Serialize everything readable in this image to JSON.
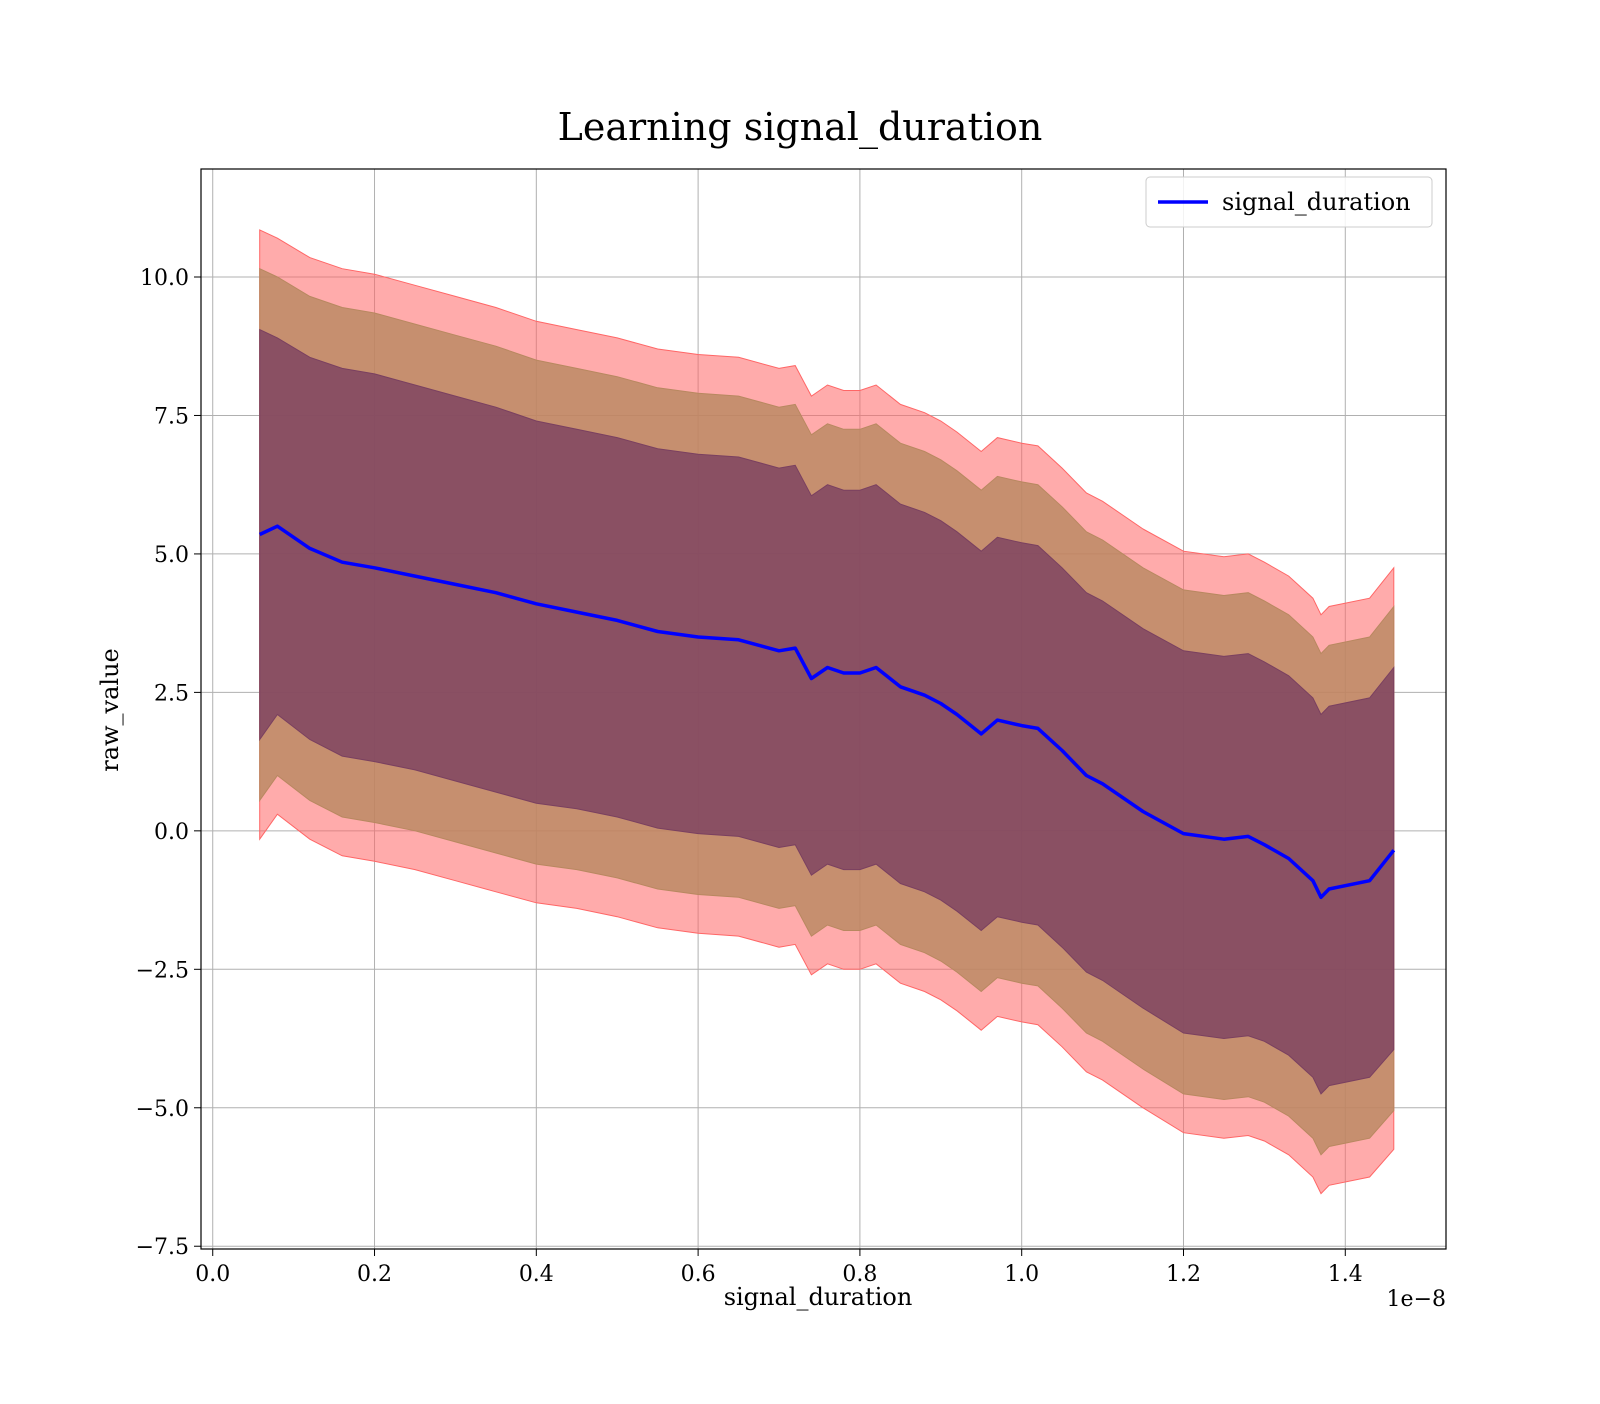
{
  "chart_data": {
    "type": "line",
    "title": "Learning signal_duration",
    "xlabel": "signal_duration",
    "ylabel": "raw_value",
    "x_offset_label": "1e−8",
    "xlim": [
      -0.0145,
      1.5245
    ],
    "ylim": [
      -7.55,
      11.95
    ],
    "x_ticks": [
      0.0,
      0.2,
      0.4,
      0.6,
      0.8,
      1.0,
      1.2,
      1.4
    ],
    "x_tick_labels": [
      "0.0",
      "0.2",
      "0.4",
      "0.6",
      "0.8",
      "1.0",
      "1.2",
      "1.4"
    ],
    "y_ticks": [
      -7.5,
      -5.0,
      -2.5,
      0.0,
      2.5,
      5.0,
      7.5,
      10.0
    ],
    "y_tick_labels": [
      "−7.5",
      "−5.0",
      "−2.5",
      "0.0",
      "2.5",
      "5.0",
      "7.5",
      "10.0"
    ],
    "grid": true,
    "legend_position": "top-right",
    "x": [
      0.058,
      0.08,
      0.12,
      0.16,
      0.2,
      0.25,
      0.3,
      0.35,
      0.4,
      0.45,
      0.5,
      0.55,
      0.6,
      0.65,
      0.7,
      0.72,
      0.74,
      0.76,
      0.78,
      0.8,
      0.82,
      0.85,
      0.88,
      0.9,
      0.92,
      0.95,
      0.97,
      1.0,
      1.02,
      1.05,
      1.08,
      1.1,
      1.15,
      1.2,
      1.25,
      1.28,
      1.3,
      1.33,
      1.36,
      1.37,
      1.38,
      1.43,
      1.46
    ],
    "series": [
      {
        "name": "signal_duration",
        "color": "#0000ff",
        "values": [
          5.35,
          5.5,
          5.1,
          4.85,
          4.75,
          4.6,
          4.45,
          4.3,
          4.1,
          3.95,
          3.8,
          3.6,
          3.5,
          3.45,
          3.25,
          3.3,
          2.75,
          2.95,
          2.85,
          2.85,
          2.95,
          2.6,
          2.45,
          2.3,
          2.1,
          1.75,
          2.0,
          1.9,
          1.85,
          1.45,
          1.0,
          0.85,
          0.35,
          -0.05,
          -0.15,
          -0.1,
          -0.25,
          -0.5,
          -0.9,
          -1.2,
          -1.05,
          -0.9,
          -0.35
        ]
      }
    ],
    "bands": [
      {
        "color": "#ff6666",
        "upper": [
          10.85,
          10.7,
          10.35,
          10.15,
          10.05,
          9.85,
          9.65,
          9.45,
          9.2,
          9.05,
          8.9,
          8.7,
          8.6,
          8.55,
          8.35,
          8.4,
          7.85,
          8.05,
          7.95,
          7.95,
          8.05,
          7.7,
          7.55,
          7.4,
          7.2,
          6.85,
          7.1,
          7.0,
          6.95,
          6.55,
          6.1,
          5.95,
          5.45,
          5.05,
          4.95,
          5.0,
          4.85,
          4.6,
          4.2,
          3.9,
          4.05,
          4.2,
          4.75
        ],
        "lower": [
          -0.15,
          0.3,
          -0.15,
          -0.45,
          -0.55,
          -0.7,
          -0.9,
          -1.1,
          -1.3,
          -1.4,
          -1.55,
          -1.75,
          -1.85,
          -1.9,
          -2.1,
          -2.05,
          -2.6,
          -2.4,
          -2.5,
          -2.5,
          -2.4,
          -2.75,
          -2.9,
          -3.05,
          -3.25,
          -3.6,
          -3.35,
          -3.45,
          -3.5,
          -3.9,
          -4.35,
          -4.5,
          -5.0,
          -5.45,
          -5.55,
          -5.5,
          -5.6,
          -5.85,
          -6.25,
          -6.55,
          -6.4,
          -6.25,
          -5.75
        ]
      },
      {
        "color": "#b88860",
        "upper": [
          10.15,
          10.0,
          9.65,
          9.45,
          9.35,
          9.15,
          8.95,
          8.75,
          8.5,
          8.35,
          8.2,
          8.0,
          7.9,
          7.85,
          7.65,
          7.7,
          7.15,
          7.35,
          7.25,
          7.25,
          7.35,
          7.0,
          6.85,
          6.7,
          6.5,
          6.15,
          6.4,
          6.3,
          6.25,
          5.85,
          5.4,
          5.25,
          4.75,
          4.35,
          4.25,
          4.3,
          4.15,
          3.9,
          3.5,
          3.2,
          3.35,
          3.5,
          4.05
        ],
        "lower": [
          0.55,
          1.0,
          0.55,
          0.25,
          0.15,
          0.0,
          -0.2,
          -0.4,
          -0.6,
          -0.7,
          -0.85,
          -1.05,
          -1.15,
          -1.2,
          -1.4,
          -1.35,
          -1.9,
          -1.7,
          -1.8,
          -1.8,
          -1.7,
          -2.05,
          -2.2,
          -2.35,
          -2.55,
          -2.9,
          -2.65,
          -2.75,
          -2.8,
          -3.2,
          -3.65,
          -3.8,
          -4.3,
          -4.75,
          -4.85,
          -4.8,
          -4.9,
          -5.15,
          -5.55,
          -5.85,
          -5.7,
          -5.55,
          -5.05
        ]
      },
      {
        "color": "#7a4060",
        "upper": [
          9.05,
          8.9,
          8.55,
          8.35,
          8.25,
          8.05,
          7.85,
          7.65,
          7.4,
          7.25,
          7.1,
          6.9,
          6.8,
          6.75,
          6.55,
          6.6,
          6.05,
          6.25,
          6.15,
          6.15,
          6.25,
          5.9,
          5.75,
          5.6,
          5.4,
          5.05,
          5.3,
          5.2,
          5.15,
          4.75,
          4.3,
          4.15,
          3.65,
          3.25,
          3.15,
          3.2,
          3.05,
          2.8,
          2.4,
          2.1,
          2.25,
          2.4,
          2.95
        ],
        "lower": [
          1.65,
          2.1,
          1.65,
          1.35,
          1.25,
          1.1,
          0.9,
          0.7,
          0.5,
          0.4,
          0.25,
          0.05,
          -0.05,
          -0.1,
          -0.3,
          -0.25,
          -0.8,
          -0.6,
          -0.7,
          -0.7,
          -0.6,
          -0.95,
          -1.1,
          -1.25,
          -1.45,
          -1.8,
          -1.55,
          -1.65,
          -1.7,
          -2.1,
          -2.55,
          -2.7,
          -3.2,
          -3.65,
          -3.75,
          -3.7,
          -3.8,
          -4.05,
          -4.45,
          -4.75,
          -4.6,
          -4.45,
          -3.95
        ]
      }
    ]
  }
}
